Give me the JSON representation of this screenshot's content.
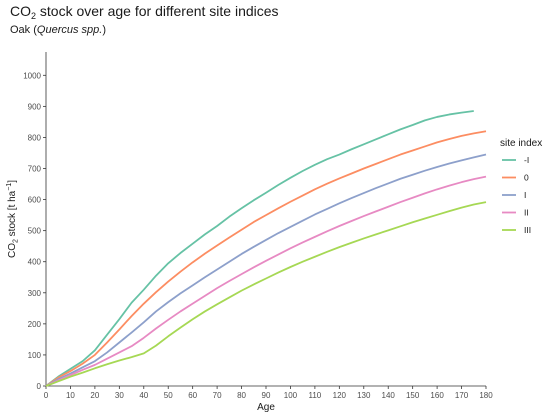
{
  "chart_data": {
    "type": "line",
    "title": "CO2 stock over age for different site indices",
    "title_parts": {
      "main": "CO",
      "sub": "2",
      "rest": " stock over age for different site indices"
    },
    "subtitle_parts": {
      "prefix": "Oak (",
      "italic": "Quercus spp.",
      "suffix": ")"
    },
    "xlabel": "Age",
    "ylabel_parts": {
      "a": "CO",
      "sub": "2",
      "b": " stock [t ha",
      "sup": "−1",
      "c": "]"
    },
    "xlim": [
      0,
      180
    ],
    "ylim": [
      0,
      1075
    ],
    "x_ticks": [
      0,
      10,
      20,
      30,
      40,
      50,
      60,
      70,
      80,
      90,
      100,
      110,
      120,
      130,
      140,
      150,
      160,
      170,
      180
    ],
    "y_ticks": [
      0,
      100,
      200,
      300,
      400,
      500,
      600,
      700,
      800,
      900,
      1000
    ],
    "grid": false,
    "legend": {
      "title": "site index",
      "position": "right"
    },
    "series": [
      {
        "name": "-I",
        "color": "#66c2a5",
        "x": [
          0,
          5,
          10,
          15,
          20,
          25,
          30,
          35,
          40,
          45,
          50,
          55,
          60,
          65,
          70,
          75,
          80,
          85,
          90,
          95,
          100,
          105,
          110,
          115,
          120,
          125,
          130,
          135,
          140,
          145,
          150,
          155,
          160,
          165,
          170,
          175
        ],
        "y": [
          0,
          30,
          55,
          80,
          115,
          165,
          215,
          268,
          310,
          355,
          395,
          428,
          458,
          488,
          515,
          545,
          572,
          598,
          622,
          647,
          670,
          692,
          712,
          730,
          745,
          762,
          778,
          794,
          810,
          826,
          840,
          855,
          866,
          874,
          880,
          885
        ]
      },
      {
        "name": "0",
        "color": "#fc8d62",
        "x": [
          0,
          5,
          10,
          15,
          20,
          25,
          30,
          35,
          40,
          45,
          50,
          55,
          60,
          65,
          70,
          75,
          80,
          85,
          90,
          95,
          100,
          105,
          110,
          115,
          120,
          125,
          130,
          135,
          140,
          145,
          150,
          155,
          160,
          165,
          170,
          175,
          180
        ],
        "y": [
          0,
          27,
          48,
          72,
          100,
          140,
          182,
          225,
          265,
          302,
          336,
          368,
          398,
          426,
          452,
          478,
          503,
          528,
          550,
          572,
          593,
          613,
          633,
          651,
          668,
          684,
          700,
          715,
          730,
          745,
          758,
          771,
          784,
          795,
          805,
          813,
          820
        ]
      },
      {
        "name": "I",
        "color": "#8da0cb",
        "x": [
          0,
          5,
          10,
          15,
          20,
          25,
          30,
          35,
          40,
          45,
          50,
          55,
          60,
          65,
          70,
          75,
          80,
          85,
          90,
          95,
          100,
          105,
          110,
          115,
          120,
          125,
          130,
          135,
          140,
          145,
          150,
          155,
          160,
          165,
          170,
          175,
          180
        ],
        "y": [
          0,
          22,
          40,
          60,
          80,
          108,
          140,
          172,
          205,
          240,
          270,
          298,
          324,
          350,
          375,
          400,
          425,
          448,
          470,
          492,
          512,
          532,
          552,
          570,
          588,
          605,
          621,
          637,
          652,
          667,
          680,
          693,
          705,
          716,
          726,
          736,
          745
        ]
      },
      {
        "name": "II",
        "color": "#e78ac3",
        "x": [
          0,
          5,
          10,
          15,
          20,
          25,
          30,
          35,
          40,
          45,
          50,
          55,
          60,
          65,
          70,
          75,
          80,
          85,
          90,
          95,
          100,
          105,
          110,
          115,
          120,
          125,
          130,
          135,
          140,
          145,
          150,
          155,
          160,
          165,
          170,
          175,
          180
        ],
        "y": [
          0,
          18,
          35,
          52,
          68,
          88,
          108,
          128,
          155,
          185,
          213,
          240,
          265,
          290,
          315,
          338,
          360,
          382,
          403,
          423,
          443,
          462,
          480,
          498,
          515,
          531,
          547,
          562,
          577,
          592,
          606,
          620,
          633,
          645,
          656,
          666,
          674
        ]
      },
      {
        "name": "III",
        "color": "#a6d854",
        "x": [
          0,
          5,
          10,
          15,
          20,
          25,
          30,
          35,
          40,
          45,
          50,
          55,
          60,
          65,
          70,
          75,
          80,
          85,
          90,
          95,
          100,
          105,
          110,
          115,
          120,
          125,
          130,
          135,
          140,
          145,
          150,
          155,
          160,
          165,
          170,
          175,
          180
        ],
        "y": [
          0,
          15,
          30,
          43,
          57,
          70,
          82,
          93,
          105,
          130,
          160,
          188,
          215,
          240,
          263,
          285,
          307,
          327,
          346,
          365,
          383,
          400,
          416,
          432,
          447,
          461,
          475,
          488,
          501,
          514,
          527,
          539,
          551,
          563,
          574,
          584,
          592
        ]
      }
    ]
  }
}
